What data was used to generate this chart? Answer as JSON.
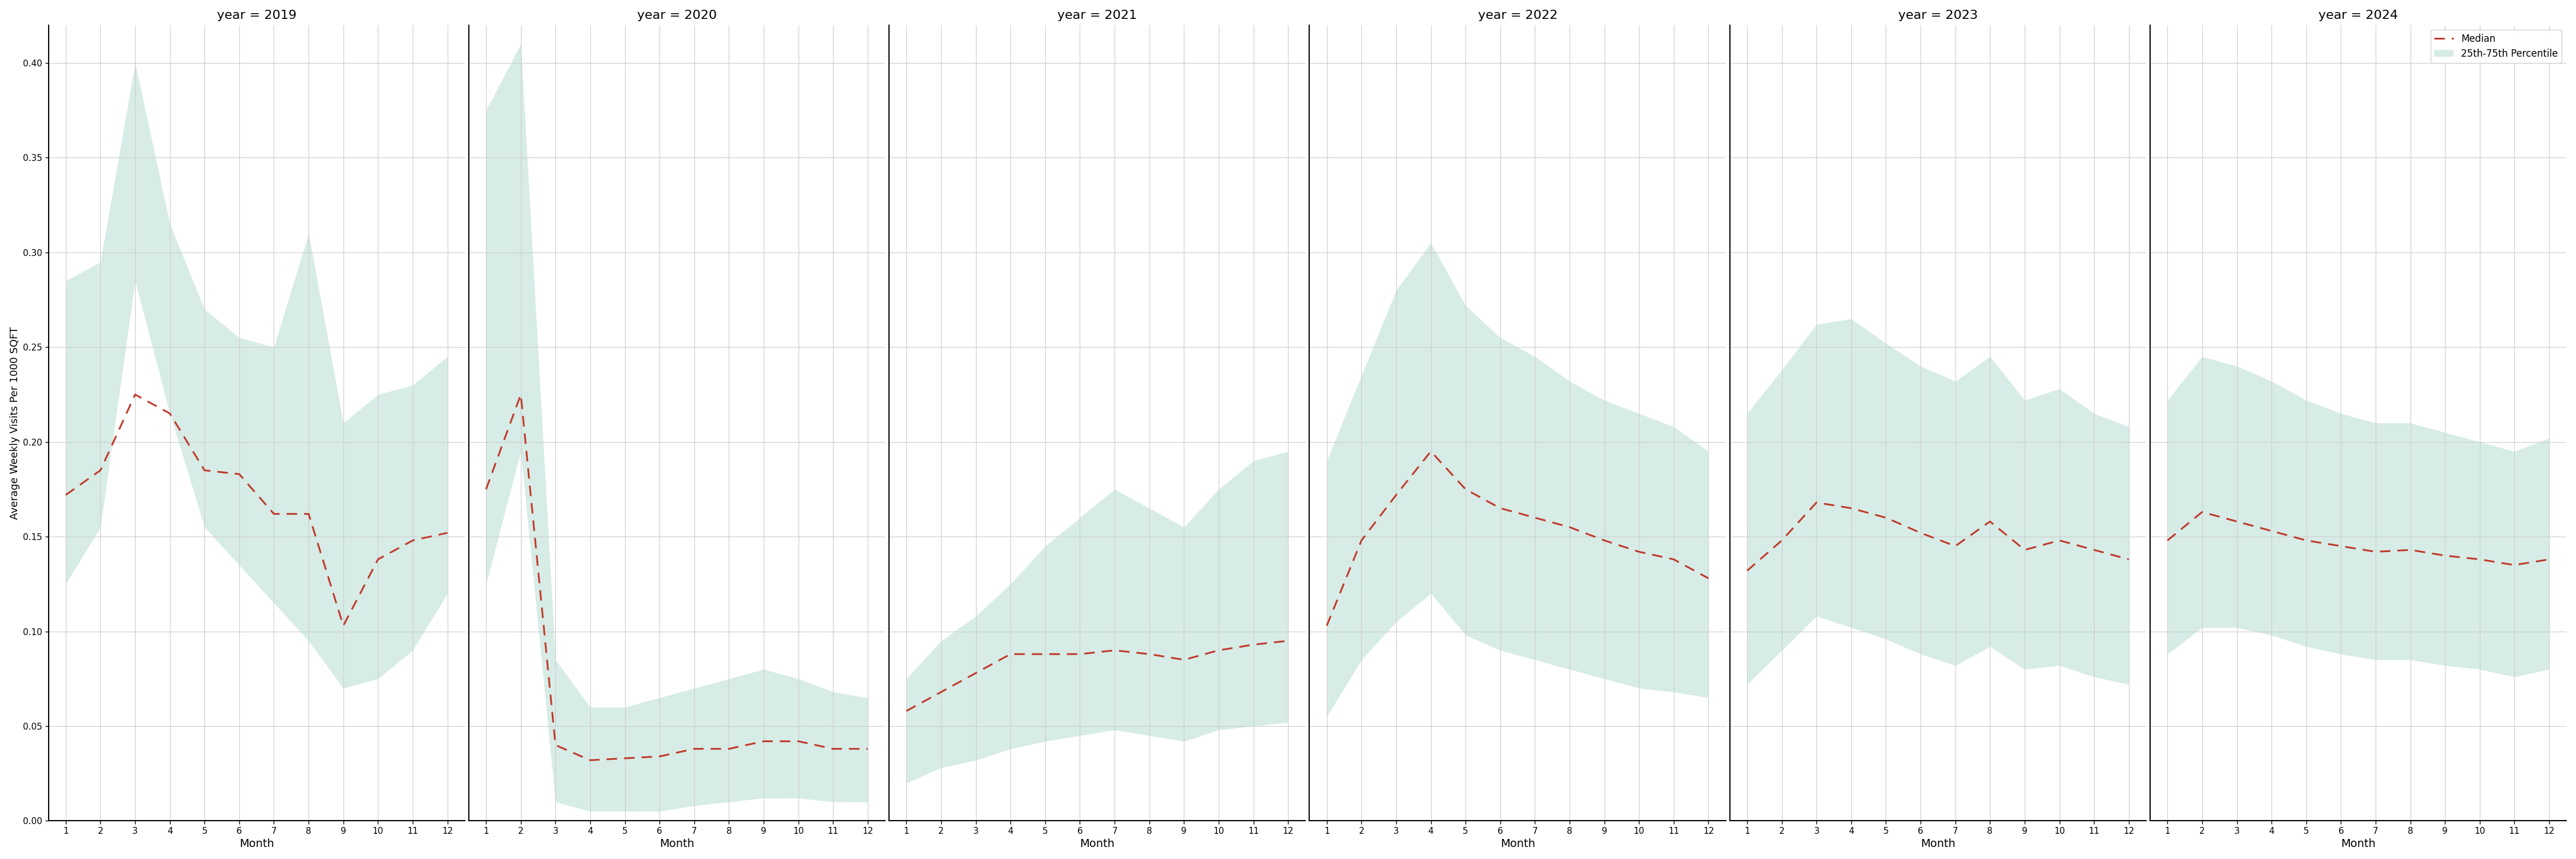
{
  "years": [
    2019,
    2020,
    2021,
    2022,
    2023,
    2024
  ],
  "months": [
    1,
    2,
    3,
    4,
    5,
    6,
    7,
    8,
    9,
    10,
    11,
    12
  ],
  "median": {
    "2019": [
      0.172,
      0.185,
      0.225,
      0.215,
      0.185,
      0.183,
      0.162,
      0.162,
      0.103,
      0.138,
      0.148,
      0.152
    ],
    "2020": [
      0.175,
      0.225,
      0.04,
      0.032,
      0.033,
      0.034,
      0.038,
      0.038,
      0.042,
      0.042,
      0.038,
      0.038
    ],
    "2021": [
      0.058,
      0.068,
      0.078,
      0.088,
      0.088,
      0.088,
      0.09,
      0.088,
      0.085,
      0.09,
      0.093,
      0.095
    ],
    "2022": [
      0.103,
      0.148,
      0.172,
      0.195,
      0.175,
      0.165,
      0.16,
      0.155,
      0.148,
      0.142,
      0.138,
      0.128
    ],
    "2023": [
      0.132,
      0.148,
      0.168,
      0.165,
      0.16,
      0.152,
      0.145,
      0.158,
      0.143,
      0.148,
      0.143,
      0.138
    ],
    "2024": [
      0.148,
      0.163,
      0.158,
      0.153,
      0.148,
      0.145,
      0.142,
      0.143,
      0.14,
      0.138,
      0.135,
      0.138
    ]
  },
  "p25": {
    "2019": [
      0.125,
      0.155,
      0.285,
      0.215,
      0.155,
      0.135,
      0.115,
      0.095,
      0.07,
      0.075,
      0.09,
      0.12
    ],
    "2020": [
      0.125,
      0.195,
      0.01,
      0.005,
      0.005,
      0.005,
      0.008,
      0.01,
      0.012,
      0.012,
      0.01,
      0.01
    ],
    "2021": [
      0.02,
      0.028,
      0.032,
      0.038,
      0.042,
      0.045,
      0.048,
      0.045,
      0.042,
      0.048,
      0.05,
      0.052
    ],
    "2022": [
      0.055,
      0.085,
      0.105,
      0.12,
      0.098,
      0.09,
      0.085,
      0.08,
      0.075,
      0.07,
      0.068,
      0.065
    ],
    "2023": [
      0.072,
      0.09,
      0.108,
      0.102,
      0.096,
      0.088,
      0.082,
      0.092,
      0.08,
      0.082,
      0.076,
      0.072
    ],
    "2024": [
      0.088,
      0.102,
      0.102,
      0.098,
      0.092,
      0.088,
      0.085,
      0.085,
      0.082,
      0.08,
      0.076,
      0.08
    ]
  },
  "p75": {
    "2019": [
      0.285,
      0.295,
      0.4,
      0.315,
      0.27,
      0.255,
      0.25,
      0.31,
      0.21,
      0.225,
      0.23,
      0.245
    ],
    "2020": [
      0.375,
      0.41,
      0.085,
      0.06,
      0.06,
      0.065,
      0.07,
      0.075,
      0.08,
      0.075,
      0.068,
      0.065
    ],
    "2021": [
      0.075,
      0.095,
      0.108,
      0.125,
      0.145,
      0.16,
      0.175,
      0.165,
      0.155,
      0.175,
      0.19,
      0.195
    ],
    "2022": [
      0.19,
      0.235,
      0.28,
      0.305,
      0.272,
      0.255,
      0.245,
      0.232,
      0.222,
      0.215,
      0.208,
      0.195
    ],
    "2023": [
      0.215,
      0.238,
      0.262,
      0.265,
      0.252,
      0.24,
      0.232,
      0.245,
      0.222,
      0.228,
      0.215,
      0.208
    ],
    "2024": [
      0.222,
      0.245,
      0.24,
      0.232,
      0.222,
      0.215,
      0.21,
      0.21,
      0.205,
      0.2,
      0.195,
      0.202
    ]
  },
  "ylim": [
    0.0,
    0.42
  ],
  "yticks": [
    0.0,
    0.05,
    0.1,
    0.15,
    0.2,
    0.25,
    0.3,
    0.35,
    0.4
  ],
  "ylabel": "Average Weekly Visits Per 1000 SQFT",
  "xlabel": "Month",
  "fill_color": "#a8d5c8",
  "fill_alpha": 0.45,
  "line_color": "#c0392b",
  "line_style": "--",
  "line_width": 2.2,
  "legend_median_label": "Median",
  "legend_band_label": "25th-75th Percentile",
  "title_prefix": "year = ",
  "bg_color": "#ffffff",
  "grid_color": "#cccccc",
  "figsize": [
    45,
    15
  ]
}
